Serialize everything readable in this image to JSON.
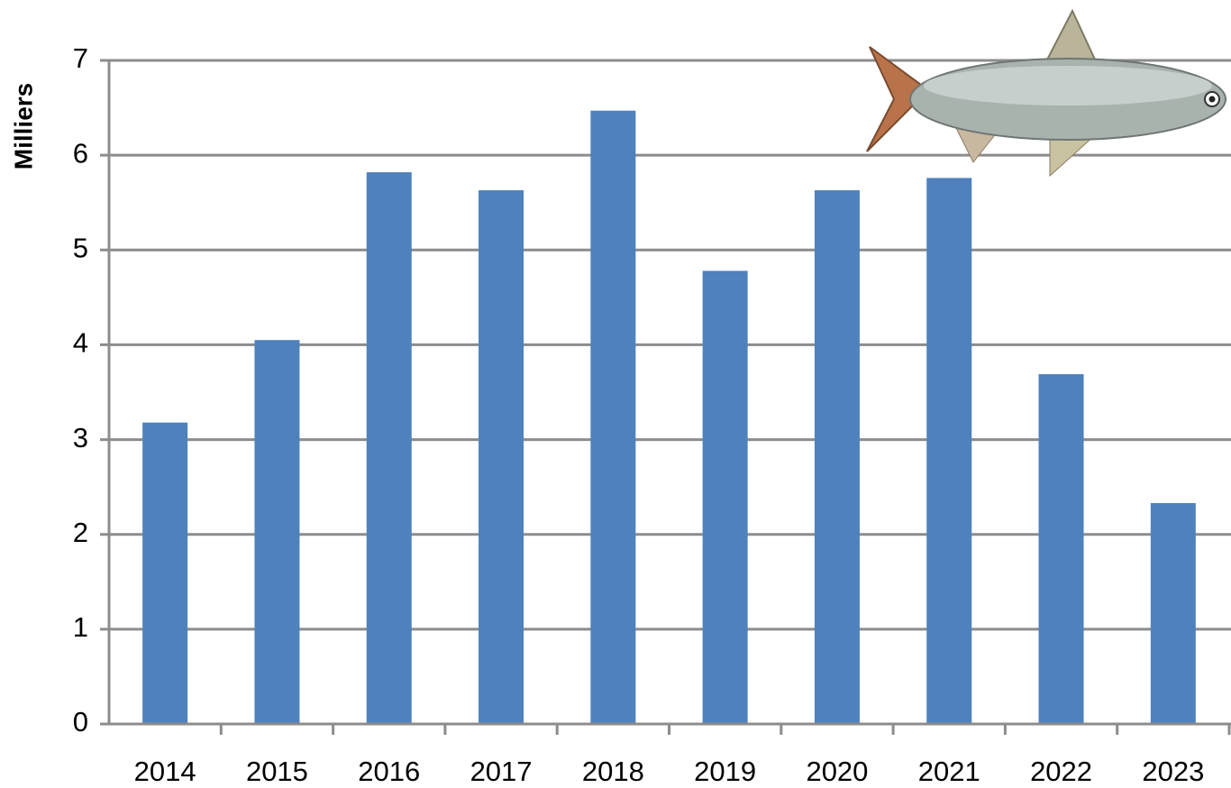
{
  "chart_data": {
    "type": "bar",
    "y_label": "Milliers",
    "categories": [
      "2014",
      "2015",
      "2016",
      "2017",
      "2018",
      "2019",
      "2020",
      "2021",
      "2022",
      "2023"
    ],
    "values": [
      3.18,
      4.05,
      5.82,
      5.63,
      6.47,
      4.78,
      5.63,
      5.76,
      3.69,
      2.33
    ],
    "color": "#4f81bd",
    "ylim": [
      0,
      7
    ],
    "yticks": [
      0,
      1,
      2,
      3,
      4,
      5,
      6,
      7
    ],
    "grid": true
  }
}
